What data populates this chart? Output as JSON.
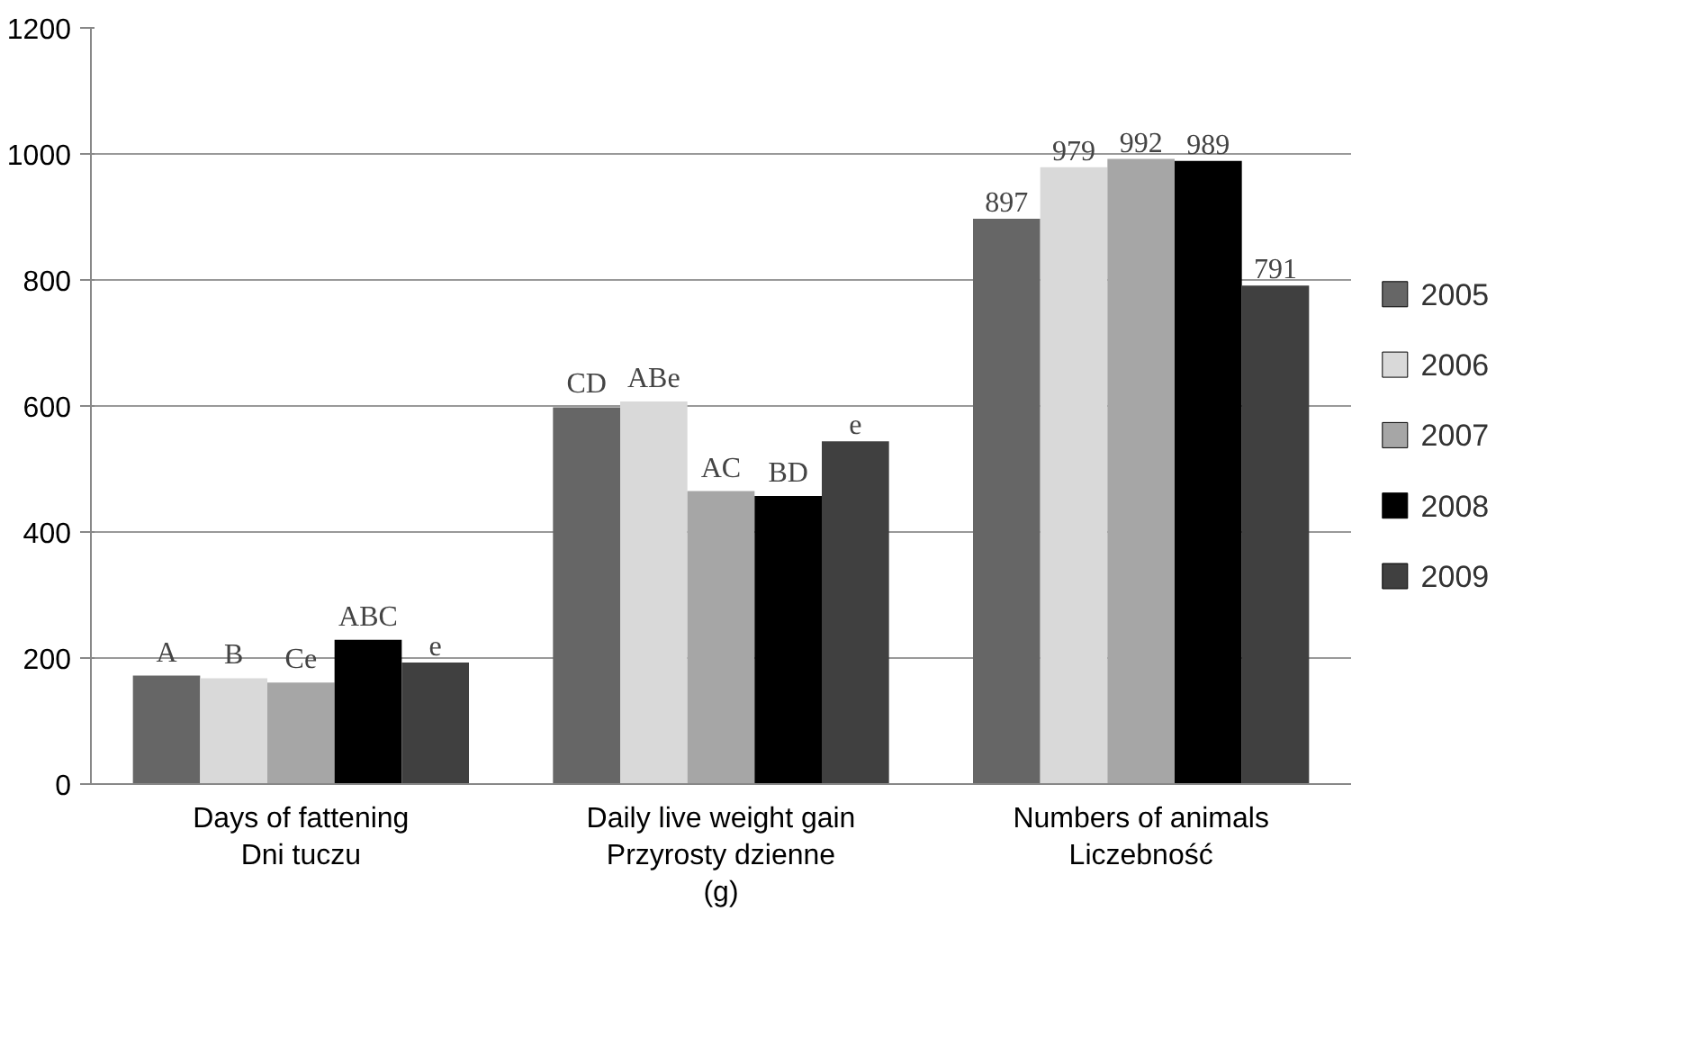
{
  "chart_data": {
    "type": "bar",
    "categories": [
      "Days of fattening\nDni tuczu",
      "Daily live weight gain\nPrzyrosty dzienne\n(g)",
      "Numbers of animals\nLiczebność"
    ],
    "series": [
      {
        "name": "2005",
        "color": "#666666",
        "values": [
          172,
          598,
          897
        ],
        "value_labels": [
          "A",
          "CD",
          "897"
        ]
      },
      {
        "name": "2006",
        "color": "#d9d9d9",
        "values": [
          168,
          607,
          979
        ],
        "value_labels": [
          "B",
          "ABe",
          "979"
        ]
      },
      {
        "name": "2007",
        "color": "#a6a6a6",
        "values": [
          161,
          465,
          992
        ],
        "value_labels": [
          "Ce",
          "AC",
          "992"
        ]
      },
      {
        "name": "2008",
        "color": "#000000",
        "values": [
          229,
          457,
          989
        ],
        "value_labels": [
          "ABC",
          "BD",
          "989"
        ]
      },
      {
        "name": "2009",
        "color": "#404040",
        "values": [
          193,
          544,
          791
        ],
        "value_labels": [
          "e",
          "e",
          "791"
        ]
      }
    ],
    "ylim": [
      0,
      1200
    ],
    "yticks": [
      0,
      200,
      400,
      600,
      800,
      1000,
      1200
    ],
    "grid": "y",
    "legend": "right"
  }
}
